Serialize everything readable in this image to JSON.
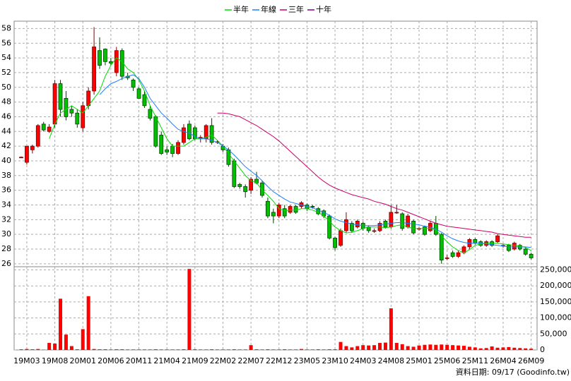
{
  "chart_data": [
    {
      "type": "candlestick",
      "categories": [
        null,
        "19M03",
        null,
        null,
        null,
        null,
        "19M08",
        null,
        null,
        null,
        null,
        "20M01",
        null,
        null,
        null,
        null,
        "20M06",
        null,
        null,
        null,
        null,
        "20M11",
        null,
        null,
        null,
        null,
        "21M04",
        null,
        null,
        null,
        null,
        "21M09",
        null,
        null,
        null,
        null,
        "22M02",
        null,
        null,
        null,
        null,
        "22M07",
        null,
        null,
        null,
        null,
        "22M12",
        null,
        null,
        null,
        null,
        "23M05",
        null,
        null,
        null,
        null,
        "23M10",
        null,
        null,
        null,
        null,
        "24M03",
        null,
        null,
        null,
        null,
        "24M08",
        null,
        null,
        null,
        null,
        "25M01",
        null,
        null,
        null,
        null,
        "25M06",
        null,
        null,
        null,
        null,
        "25M11",
        null,
        null,
        null,
        null,
        "26M04",
        null,
        null,
        null,
        null,
        "26M09"
      ],
      "open": [
        40.5,
        39.8,
        41.5,
        42,
        45,
        44,
        45,
        50.5,
        48.5,
        47,
        46.5,
        44.5,
        47.5,
        49.5,
        55,
        55.2,
        53.5,
        52,
        55,
        51.5,
        51,
        49.8,
        49,
        47,
        46,
        43.5,
        41.5,
        42,
        41,
        42.5,
        45,
        44.5,
        43,
        43,
        44.8,
        42.6,
        42,
        41.5,
        40,
        36.8,
        36.5,
        36,
        37.5,
        37,
        34.5,
        33,
        32.5,
        33.5,
        33,
        33.8,
        33.8,
        34,
        33.8,
        33.5,
        33.2,
        32.5,
        29.5,
        28.5,
        30.5,
        31.5,
        31,
        31.5,
        31,
        30.5,
        30.5,
        31.8,
        31,
        33,
        32.8,
        31,
        31.8,
        30.8,
        31,
        30.5,
        31.5,
        30,
        26.8,
        27.5,
        27,
        27.5,
        28.3,
        29.3,
        29,
        28.5,
        29,
        29,
        28.5,
        28.5,
        28,
        28.5,
        28,
        27.3
      ],
      "high": [
        40.6,
        42,
        42.2,
        45,
        45.3,
        45,
        51,
        51,
        49.5,
        47.5,
        47,
        48,
        50,
        58.2,
        56.8,
        55.3,
        54,
        55.5,
        55.3,
        52,
        51.2,
        50,
        49.5,
        47.5,
        46.2,
        44,
        42,
        42.3,
        42.8,
        45,
        45.5,
        44.8,
        43.5,
        45,
        45.8,
        42.8,
        42.3,
        41.8,
        40.3,
        37,
        36.8,
        37.8,
        38.5,
        37.3,
        35,
        33.5,
        34.3,
        34,
        34,
        34,
        34.5,
        34.2,
        34,
        33.7,
        33.4,
        32.7,
        29.7,
        30.8,
        33,
        31.8,
        32,
        31.7,
        31.2,
        30.8,
        31.8,
        32,
        34,
        34,
        33,
        32.8,
        32,
        31,
        31.2,
        31.8,
        32.5,
        30.2,
        27.2,
        27.8,
        27.8,
        28.5,
        29.5,
        29.5,
        29.2,
        29.2,
        29.2,
        30,
        28.7,
        28.7,
        29,
        28.7,
        28.2,
        27.5
      ],
      "low": [
        40.4,
        39.5,
        41,
        41.8,
        44,
        43.8,
        44.5,
        46,
        45.5,
        46,
        44.5,
        44,
        47,
        49,
        52.5,
        53,
        53,
        51.5,
        51,
        51,
        49.5,
        48.5,
        47.2,
        45.5,
        41.8,
        40.8,
        40.8,
        40.5,
        40.8,
        42.2,
        42.8,
        42.8,
        42.5,
        42.5,
        42.2,
        42.3,
        41.2,
        39.2,
        36.3,
        36.2,
        35,
        35.5,
        36.8,
        35,
        32.2,
        31.5,
        32.2,
        32.2,
        32.8,
        32.8,
        33.5,
        33.2,
        33.5,
        32.6,
        32.2,
        29.3,
        27.8,
        28.3,
        30.2,
        30.2,
        30.8,
        30.5,
        30.2,
        30.2,
        30.3,
        30.8,
        30.8,
        32.8,
        30.5,
        30.8,
        30,
        30.5,
        29.8,
        30.3,
        29.8,
        26,
        26.5,
        26.8,
        26.8,
        27.3,
        28,
        28.6,
        28.3,
        28.3,
        28.3,
        28.8,
        28.2,
        27.6,
        27.8,
        27.8,
        27.1,
        26.6
      ],
      "close": [
        40.5,
        42,
        42,
        44.8,
        44.2,
        44.6,
        50.5,
        47,
        46,
        46.5,
        45,
        47.5,
        49.5,
        55.5,
        53,
        53.5,
        53.3,
        55,
        51.5,
        51.3,
        50,
        48.5,
        47.5,
        45.8,
        42,
        41,
        41.2,
        41,
        42.5,
        44.5,
        43,
        43,
        43.2,
        44.8,
        42.5,
        42.6,
        41.5,
        39.5,
        36.5,
        36.5,
        35.8,
        37.5,
        37,
        35.3,
        32.5,
        32.5,
        34,
        32.5,
        33.8,
        33,
        34.3,
        33.5,
        33.7,
        32.8,
        32.5,
        29.5,
        28.2,
        30.5,
        32,
        30.5,
        31.8,
        30.8,
        30.5,
        30.5,
        31.5,
        31,
        33,
        33,
        30.8,
        32.5,
        30.2,
        30.8,
        30,
        31.5,
        30,
        26.5,
        26.8,
        27,
        27.5,
        28.3,
        29.3,
        28.8,
        28.5,
        29,
        28.5,
        29.8,
        28.5,
        27.8,
        28.8,
        28,
        27.3,
        26.8
      ],
      "up_color": "#ff0000",
      "down_color": "#00c000",
      "series": [
        {
          "name": "半年",
          "color": "#00dd00",
          "values": [
            null,
            null,
            null,
            null,
            null,
            43,
            45,
            46.5,
            47,
            47.5,
            47,
            46.5,
            47.5,
            48.5,
            49.5,
            51.5,
            53,
            54,
            53.5,
            52.5,
            52,
            51,
            49.5,
            47.5,
            46,
            44.5,
            43,
            42,
            42,
            42,
            42.5,
            43,
            43,
            43.2,
            43.5,
            42.8,
            42,
            41,
            40,
            39,
            38,
            37.3,
            37,
            36,
            35.3,
            34.5,
            33.5,
            33.2,
            33.3,
            33.3,
            33.5,
            33.5,
            33.3,
            33,
            32.5,
            31.8,
            31,
            30.5,
            30.2,
            30.3,
            30.5,
            30.8,
            31,
            31,
            31,
            30.9,
            31,
            31.2,
            31.3,
            31,
            30.8,
            30.8,
            30.8,
            30.8,
            30.6,
            29.8,
            29,
            28.3,
            27.8,
            27.5,
            27.9,
            28.5,
            28.7,
            28.8,
            28.8,
            28.8,
            28.7,
            28.6,
            28.5,
            28.4,
            28.2,
            27.8
          ]
        },
        {
          "name": "年線",
          "color": "#1e7fff",
          "values": [
            null,
            null,
            null,
            null,
            null,
            null,
            null,
            null,
            null,
            null,
            null,
            null,
            null,
            null,
            49,
            49.8,
            50.5,
            50.8,
            51.2,
            51.5,
            51.7,
            51.2,
            50,
            48.5,
            47.5,
            46.5,
            45.8,
            45,
            44.3,
            44,
            43.8,
            43.3,
            43,
            43,
            42.8,
            42.5,
            42,
            41.5,
            40.8,
            40,
            39.2,
            38.6,
            38,
            37.3,
            36.5,
            35.8,
            35.3,
            34.8,
            34.4,
            34.2,
            34,
            33.8,
            33.6,
            33.3,
            33,
            32.6,
            32.1,
            31.8,
            31.6,
            31.4,
            31.3,
            31.2,
            31.2,
            31.2,
            31.3,
            31.4,
            31.5,
            31.6,
            31.6,
            31.5,
            31.4,
            31.3,
            31.1,
            31,
            30.7,
            30.3,
            29.8,
            29.4,
            29.1,
            28.9,
            28.8,
            28.8,
            28.8,
            28.7,
            28.6,
            28.5,
            28.4,
            28.3,
            28.3,
            28.3,
            28.3,
            28.2
          ]
        },
        {
          "name": "三年",
          "color": "#cc0066",
          "values": [
            null,
            null,
            null,
            null,
            null,
            null,
            null,
            null,
            null,
            null,
            null,
            null,
            null,
            null,
            null,
            null,
            null,
            null,
            null,
            null,
            null,
            null,
            null,
            null,
            null,
            null,
            null,
            null,
            null,
            null,
            null,
            null,
            null,
            null,
            null,
            46.5,
            46.5,
            46.4,
            46.2,
            46,
            45.6,
            45.2,
            44.8,
            44.3,
            43.8,
            43.3,
            42.7,
            42,
            41.3,
            40.6,
            39.9,
            39.2,
            38.5,
            37.8,
            37.2,
            36.7,
            36.3,
            36,
            35.7,
            35.4,
            35.2,
            35,
            34.8,
            34.5,
            34.3,
            34.1,
            33.8,
            33.5,
            33.3,
            33,
            32.7,
            32.4,
            32.1,
            31.8,
            31.5,
            31.3,
            31.1,
            31,
            30.9,
            30.8,
            30.7,
            30.6,
            30.5,
            30.4,
            30.3,
            30.1,
            30,
            29.9,
            29.8,
            29.7,
            29.6,
            29.6
          ]
        },
        {
          "name": "十年",
          "color": "#800080",
          "values": [
            null,
            null,
            null,
            null,
            null,
            null,
            null,
            null,
            null,
            null,
            null,
            null,
            null,
            null,
            null,
            null,
            null,
            null,
            null,
            null,
            null,
            null,
            null,
            null,
            null,
            null,
            null,
            null,
            null,
            null,
            null,
            null,
            null,
            null,
            null,
            null,
            null,
            null,
            null,
            null,
            null,
            null,
            null,
            null,
            null,
            null,
            null,
            null,
            null,
            null,
            null,
            null,
            null,
            null,
            null,
            null,
            null,
            null,
            null,
            null,
            null,
            null,
            null,
            null,
            null,
            null,
            null,
            null,
            null,
            null,
            null,
            null,
            null,
            null,
            null,
            null,
            null,
            null,
            null,
            null,
            null,
            null,
            null,
            null,
            null,
            null,
            null,
            null,
            null,
            null,
            null,
            null
          ]
        }
      ],
      "ylim": [
        25.6,
        59
      ],
      "yticks": [
        26,
        28,
        30,
        32,
        34,
        36,
        38,
        40,
        42,
        44,
        46,
        48,
        50,
        52,
        54,
        56,
        58
      ],
      "grid": true
    },
    {
      "type": "bar",
      "color": "#ff0000",
      "values": [
        2000,
        3000,
        2000,
        3000,
        1000,
        22000,
        20000,
        160000,
        48000,
        12000,
        2000,
        65000,
        168000,
        3000,
        2000,
        2000,
        1500,
        2000,
        2000,
        1500,
        1500,
        1500,
        1500,
        1500,
        2000,
        1500,
        1500,
        1500,
        1500,
        2000,
        253000,
        2000,
        1500,
        1500,
        2000,
        1500,
        1500,
        1500,
        2000,
        1500,
        1500,
        15000,
        2000,
        1500,
        2000,
        1500,
        1500,
        2000,
        1500,
        1500,
        3000,
        1500,
        1500,
        2000,
        1500,
        2000,
        2000,
        25000,
        12000,
        8000,
        12000,
        15000,
        14000,
        15000,
        22000,
        23000,
        130000,
        22000,
        18000,
        12000,
        10000,
        14000,
        16000,
        17000,
        16000,
        17000,
        16000,
        15000,
        14000,
        13000,
        10000,
        8000,
        5000,
        6000,
        11000,
        7000,
        8000,
        9000,
        7000,
        6000,
        5000,
        4000
      ],
      "ylim": [
        0,
        260000
      ],
      "yticks": [
        0,
        {
          "value": 50000,
          "label": "50,000"
        },
        {
          "value": 100000,
          "label": "100,000"
        },
        {
          "value": 150000,
          "label": "150,000"
        },
        {
          "value": 200000,
          "label": "200,000"
        },
        {
          "value": 250000,
          "label": "250,000"
        }
      ],
      "grid": true,
      "footer": "資料日期: 09/17  (Goodinfo.tw)"
    }
  ]
}
